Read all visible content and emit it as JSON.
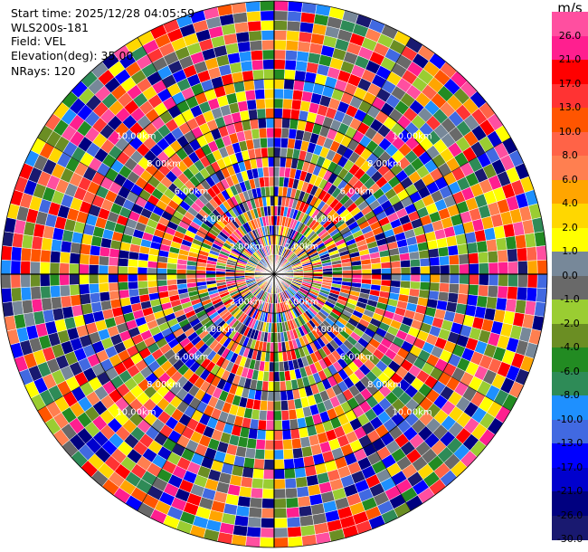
{
  "info": {
    "start_time": "Start time: 2025/12/28 04:05:59",
    "instrument": "WLS200s-181",
    "field": "Field: VEL",
    "elevation": "Elevation(deg): 35.00",
    "nrays": "NRays: 120"
  },
  "colorbar": {
    "unit": "m/s",
    "bins": [
      {
        "label": "26.0",
        "color": "#ff4fa0"
      },
      {
        "label": "21.0",
        "color": "#ff1f8f"
      },
      {
        "label": "17.0",
        "color": "#ff0000"
      },
      {
        "label": "13.0",
        "color": "#ff3333"
      },
      {
        "label": "10.0",
        "color": "#ff5500"
      },
      {
        "label": "8.0",
        "color": "#ff6347"
      },
      {
        "label": "6.0",
        "color": "#ff7f50"
      },
      {
        "label": "4.0",
        "color": "#ffa500"
      },
      {
        "label": "2.0",
        "color": "#ffd700"
      },
      {
        "label": "1.0",
        "color": "#ffff00"
      },
      {
        "label": "0.0",
        "color": "#778899"
      },
      {
        "label": "-1.0",
        "color": "#696969"
      },
      {
        "label": "-2.0",
        "color": "#9acd32"
      },
      {
        "label": "-4.0",
        "color": "#6b8e23"
      },
      {
        "label": "-6.0",
        "color": "#228b22"
      },
      {
        "label": "-8.0",
        "color": "#2e8b57"
      },
      {
        "label": "-10.0",
        "color": "#1e90ff"
      },
      {
        "label": "-13.0",
        "color": "#4169e1"
      },
      {
        "label": "-17.0",
        "color": "#0000ff"
      },
      {
        "label": "-21.0",
        "color": "#0000cd"
      },
      {
        "label": "-26.0",
        "color": "#000080"
      },
      {
        "label": "-30.0",
        "color": "#191970"
      }
    ]
  },
  "chart_data": {
    "type": "heatmap",
    "projection": "polar",
    "field": "VEL",
    "unit": "m/s",
    "elevation_deg": 35.0,
    "nrays": 120,
    "range_ring_labels": [
      "2.00km",
      "4.00km",
      "6.00km",
      "8.00km",
      "10.00km"
    ],
    "range_rings_km": [
      2,
      4,
      6,
      8,
      10
    ],
    "max_range_km": 14,
    "color_levels": [
      26.0,
      21.0,
      17.0,
      13.0,
      10.0,
      8.0,
      6.0,
      4.0,
      2.0,
      1.0,
      0.0,
      -1.0,
      -2.0,
      -4.0,
      -6.0,
      -8.0,
      -10.0,
      -13.0,
      -17.0,
      -21.0,
      -26.0,
      -30.0
    ],
    "grid": true
  }
}
